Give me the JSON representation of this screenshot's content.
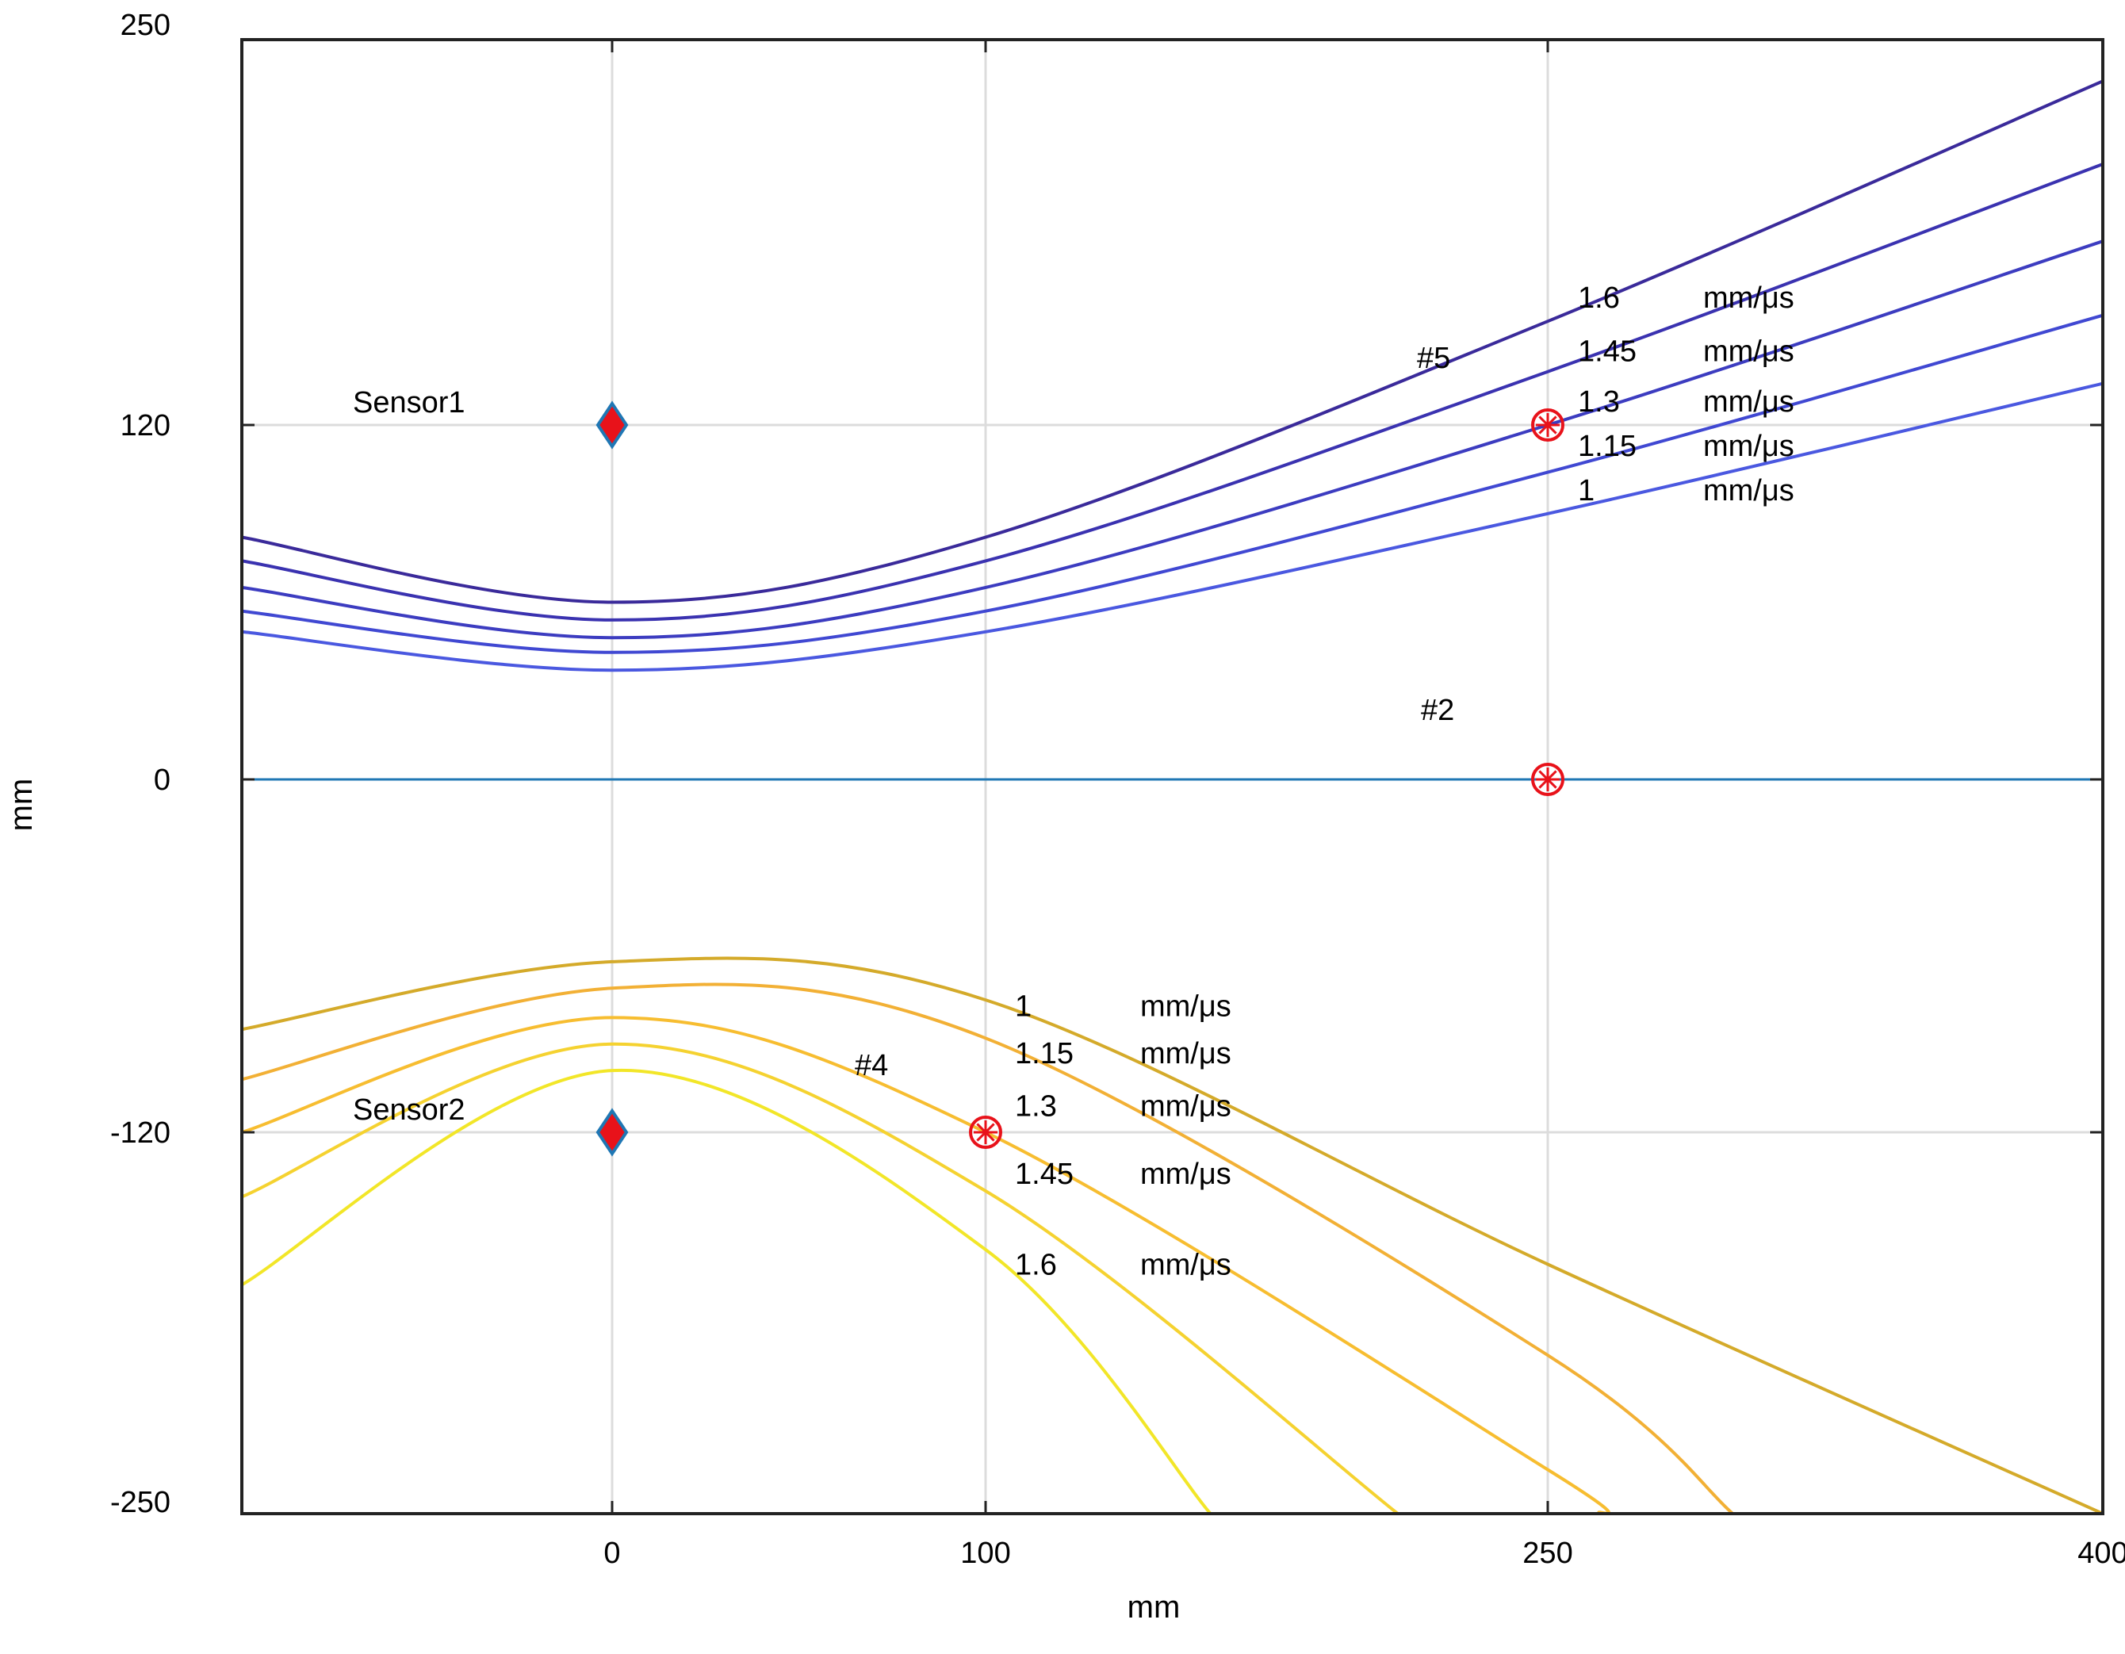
{
  "chart_data": {
    "type": "line",
    "title": "",
    "xlabel": "mm",
    "ylabel": "mm",
    "x_ticks": [
      {
        "value": 0,
        "label": "0"
      },
      {
        "value": 100,
        "label": "100"
      },
      {
        "value": 250,
        "label": "250"
      },
      {
        "value": 400,
        "label": "400"
      }
    ],
    "y_ticks": [
      {
        "value": 250,
        "label": "250"
      },
      {
        "value": 120,
        "label": "120"
      },
      {
        "value": 0,
        "label": "0"
      },
      {
        "value": -120,
        "label": "-120"
      },
      {
        "value": -250,
        "label": "-250"
      }
    ],
    "grid": true,
    "sensors": [
      {
        "name": "Sensor1",
        "x": 0,
        "y": 120
      },
      {
        "name": "Sensor2",
        "x": 0,
        "y": -120
      }
    ],
    "sources": [
      {
        "name": "#5",
        "x": 250,
        "y": 120
      },
      {
        "name": "#2",
        "x": 250,
        "y": 0
      },
      {
        "name": "#4",
        "x": 100,
        "y": -120
      }
    ],
    "reference_line": {
      "y": 0,
      "color": "#1f77b4"
    },
    "series": [
      {
        "name": "upper 1.6",
        "velocity": "1.6",
        "unit": "mm/μs",
        "color": "#3a2a9a",
        "x": [
          -100,
          0,
          100,
          250,
          400
        ],
        "y": [
          82,
          60,
          82,
          155,
          236
        ]
      },
      {
        "name": "upper 1.45",
        "velocity": "1.45",
        "unit": "mm/μs",
        "color": "#3a32b0",
        "x": [
          -100,
          0,
          100,
          250,
          400
        ],
        "y": [
          74,
          54,
          74,
          138,
          208
        ]
      },
      {
        "name": "upper 1.3",
        "velocity": "1.3",
        "unit": "mm/μs",
        "color": "#3c3cc0",
        "x": [
          -100,
          0,
          100,
          250,
          400
        ],
        "y": [
          65,
          48,
          65,
          120,
          182
        ]
      },
      {
        "name": "upper 1.15",
        "velocity": "1.15",
        "unit": "mm/μs",
        "color": "#4048d2",
        "x": [
          -100,
          0,
          100,
          250,
          400
        ],
        "y": [
          57,
          43,
          57,
          104,
          157
        ]
      },
      {
        "name": "upper 1",
        "velocity": "1",
        "unit": "mm/μs",
        "color": "#4a58e0",
        "x": [
          -100,
          0,
          100,
          250,
          400
        ],
        "y": [
          50,
          37,
          50,
          90,
          134
        ]
      },
      {
        "name": "lower 1",
        "velocity": "1",
        "unit": "mm/μs",
        "color": "#d4aa2a",
        "x": [
          -100,
          0,
          100,
          250,
          400
        ],
        "y": [
          -85,
          -62,
          -75,
          -165,
          -250
        ]
      },
      {
        "name": "lower 1.15",
        "velocity": "1.15",
        "unit": "mm/μs",
        "color": "#f2b035",
        "x": [
          -100,
          0,
          100,
          250,
          300
        ],
        "y": [
          -102,
          -71,
          -88,
          -196,
          -250
        ]
      },
      {
        "name": "lower 1.3",
        "velocity": "1.3",
        "unit": "mm/μs",
        "color": "#f7bd30",
        "x": [
          -100,
          0,
          100,
          250,
          264
        ],
        "y": [
          -120,
          -81,
          -120,
          -235,
          -250
        ]
      },
      {
        "name": "lower 1.45",
        "velocity": "1.45",
        "unit": "mm/μs",
        "color": "#f5d230",
        "x": [
          -100,
          0,
          100,
          210
        ],
        "y": [
          -142,
          -90,
          -140,
          -250
        ]
      },
      {
        "name": "lower 1.6",
        "velocity": "1.6",
        "unit": "mm/μs",
        "color": "#f2e628",
        "x": [
          -100,
          0,
          100,
          160
        ],
        "y": [
          -172,
          -99,
          -160,
          -250
        ]
      }
    ],
    "labels": {
      "upper": [
        {
          "value": "1.6",
          "unit": "mm/μs",
          "y": 163
        },
        {
          "value": "1.45",
          "unit": "mm/μs",
          "y": 145
        },
        {
          "value": "1.3",
          "unit": "mm/μs",
          "y": 128
        },
        {
          "value": "1.15",
          "unit": "mm/μs",
          "y": 113
        },
        {
          "value": "1",
          "unit": "mm/μs",
          "y": 98
        }
      ],
      "lower": [
        {
          "value": "1",
          "unit": "mm/μs",
          "y": -77
        },
        {
          "value": "1.15",
          "unit": "mm/μs",
          "y": -93
        },
        {
          "value": "1.3",
          "unit": "mm/μs",
          "y": -111
        },
        {
          "value": "1.45",
          "unit": "mm/μs",
          "y": -134
        },
        {
          "value": "1.6",
          "unit": "mm/μs",
          "y": -165
        }
      ]
    }
  }
}
